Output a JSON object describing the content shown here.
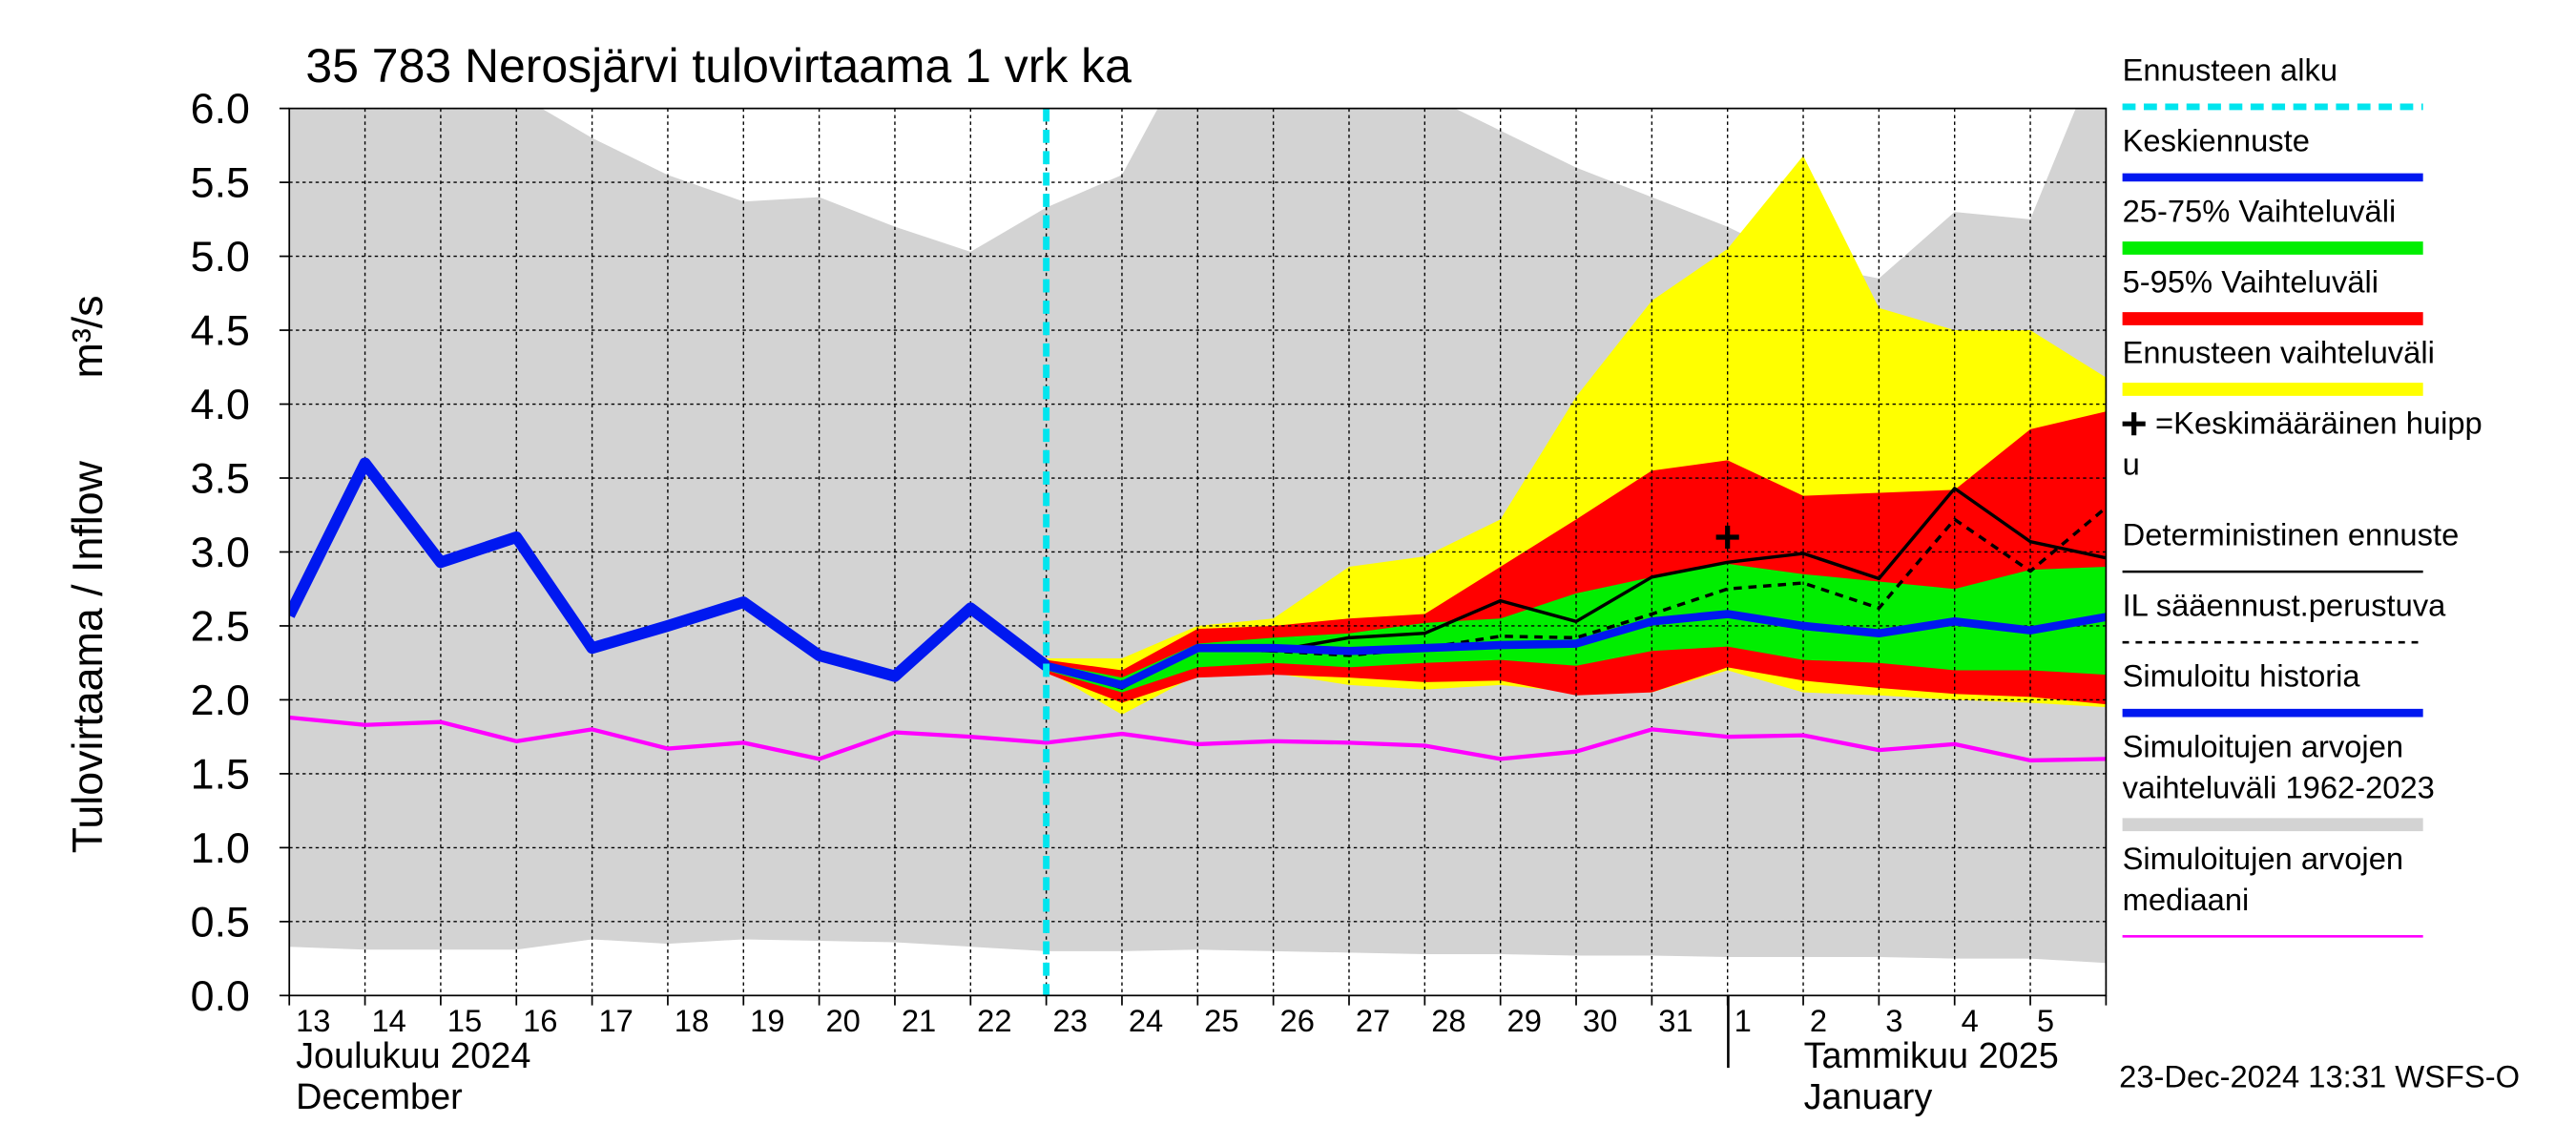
{
  "chart_data": {
    "type": "line",
    "title": "35 783 Nerosjärvi tulovirtaama 1 vrk ka",
    "y_label": "Tulovirtaama / Inflow",
    "y_unit": "m³/s",
    "categories": [
      "13",
      "14",
      "15",
      "16",
      "17",
      "18",
      "19",
      "20",
      "21",
      "22",
      "23",
      "24",
      "25",
      "26",
      "27",
      "28",
      "29",
      "30",
      "31",
      "1",
      "2",
      "3",
      "4",
      "5",
      null
    ],
    "month_labels": [
      [
        "Joulukuu  2024",
        "December"
      ],
      [
        "Tammikuu  2025",
        "January"
      ]
    ],
    "footer": "23-Dec-2024 13:31 WSFS-O",
    "ylim": [
      0,
      6
    ],
    "yticks": [
      {
        "value": 0,
        "label": "0.0"
      },
      0.5,
      {
        "value": 1,
        "label": "1.0"
      },
      1.5,
      {
        "value": 2,
        "label": "2.0"
      },
      2.5,
      {
        "value": 3,
        "label": "3.0"
      },
      3.5,
      {
        "value": 4,
        "label": "4.0"
      },
      4.5,
      {
        "value": 5,
        "label": "5.0"
      },
      5.5,
      {
        "value": 6,
        "label": "6.0"
      }
    ],
    "grid": true,
    "forecast_start": {
      "name": "Ennusteen alku",
      "x": 10,
      "color": "#00e5ee"
    },
    "peak": {
      "name": [
        "=Keskimääräinen huipp",
        "u"
      ],
      "x": 19,
      "y": 3.1,
      "color": "#000000"
    },
    "series": [
      {
        "name": [
          "Keskiennuste"
        ],
        "kind": "line",
        "color": "#0018f0",
        "width": 5,
        "values": [
          null,
          null,
          null,
          null,
          null,
          null,
          null,
          null,
          null,
          null,
          2.23,
          2.1,
          2.35,
          2.35,
          2.33,
          2.35,
          2.37,
          2.38,
          2.53,
          2.58,
          2.5,
          2.45,
          2.53,
          2.47,
          2.56
        ]
      },
      {
        "name": [
          "25-75% Vaihteluväli"
        ],
        "kind": "band",
        "color": "#00ee00",
        "upper": [
          null,
          null,
          null,
          null,
          null,
          null,
          null,
          null,
          null,
          null,
          2.25,
          2.15,
          2.38,
          2.42,
          2.45,
          2.52,
          2.55,
          2.72,
          2.83,
          2.92,
          2.85,
          2.8,
          2.75,
          2.88,
          2.9
        ],
        "lower": [
          null,
          null,
          null,
          null,
          null,
          null,
          null,
          null,
          null,
          null,
          2.2,
          2.05,
          2.22,
          2.25,
          2.22,
          2.25,
          2.27,
          2.23,
          2.33,
          2.36,
          2.27,
          2.25,
          2.2,
          2.2,
          2.17
        ]
      },
      {
        "name": [
          "5-95% Vaihteluväli"
        ],
        "kind": "band",
        "color": "#ff0000",
        "upper": [
          null,
          null,
          null,
          null,
          null,
          null,
          null,
          null,
          null,
          null,
          2.27,
          2.2,
          2.48,
          2.5,
          2.55,
          2.58,
          2.9,
          3.22,
          3.55,
          3.62,
          3.38,
          3.4,
          3.42,
          3.83,
          3.95
        ],
        "lower": [
          null,
          null,
          null,
          null,
          null,
          null,
          null,
          null,
          null,
          null,
          2.18,
          1.98,
          2.15,
          2.17,
          2.15,
          2.12,
          2.13,
          2.03,
          2.05,
          2.22,
          2.13,
          2.08,
          2.04,
          2.02,
          1.97
        ]
      },
      {
        "name": [
          "Ennusteen vaihteluväli"
        ],
        "kind": "band",
        "color": "#ffff00",
        "upper": [
          null,
          null,
          null,
          null,
          null,
          null,
          null,
          null,
          null,
          null,
          2.28,
          2.28,
          2.5,
          2.55,
          2.9,
          2.97,
          3.22,
          4.05,
          4.7,
          5.05,
          5.68,
          4.65,
          4.5,
          4.5,
          4.18
        ],
        "lower": [
          null,
          null,
          null,
          null,
          null,
          null,
          null,
          null,
          null,
          null,
          2.2,
          1.9,
          2.17,
          2.18,
          2.1,
          2.07,
          2.1,
          2.05,
          2.05,
          2.2,
          2.05,
          2.03,
          2.0,
          1.98,
          1.95
        ]
      },
      {
        "name": [
          "Deterministinen ennuste"
        ],
        "kind": "line",
        "color": "#000000",
        "width": 2,
        "values": [
          null,
          null,
          null,
          null,
          null,
          null,
          null,
          null,
          null,
          null,
          2.23,
          2.08,
          2.35,
          2.33,
          2.42,
          2.45,
          2.67,
          2.53,
          2.83,
          2.93,
          2.99,
          2.82,
          3.43,
          3.07,
          2.96
        ]
      },
      {
        "name": [
          "IL sääennust.perustuva"
        ],
        "kind": "line",
        "color": "#000000",
        "width": 2,
        "dashed": true,
        "values": [
          null,
          null,
          null,
          null,
          null,
          null,
          null,
          null,
          null,
          null,
          2.23,
          2.08,
          2.35,
          2.33,
          2.3,
          2.35,
          2.43,
          2.42,
          2.58,
          2.75,
          2.79,
          2.62,
          3.22,
          2.87,
          3.3
        ]
      },
      {
        "name": [
          "Simuloitu historia"
        ],
        "kind": "line",
        "color": "#0018f0",
        "width": 7,
        "values": [
          2.57,
          3.6,
          2.93,
          3.1,
          2.35,
          2.5,
          2.66,
          2.3,
          2.16,
          2.62,
          2.23,
          null,
          null,
          null,
          null,
          null,
          null,
          null,
          null,
          null,
          null,
          null,
          null,
          null,
          null
        ]
      },
      {
        "name": [
          "Simuloitujen arvojen",
          "vaihteluväli 1962-2023"
        ],
        "kind": "band",
        "color": "#d3d3d3",
        "upper": [
          6.5,
          6.5,
          6.5,
          6.1,
          5.8,
          5.55,
          5.37,
          5.4,
          5.2,
          5.03,
          5.33,
          5.55,
          6.5,
          6.5,
          6.5,
          6.1,
          5.85,
          5.6,
          5.4,
          5.2,
          4.95,
          4.85,
          5.3,
          5.25,
          6.5
        ],
        "lower": [
          0.33,
          0.31,
          0.31,
          0.31,
          0.38,
          0.35,
          0.38,
          0.37,
          0.36,
          0.33,
          0.3,
          0.3,
          0.31,
          0.3,
          0.29,
          0.28,
          0.28,
          0.27,
          0.27,
          0.26,
          0.26,
          0.26,
          0.25,
          0.25,
          0.22
        ]
      },
      {
        "name": [
          "Simuloitujen arvojen",
          "mediaani"
        ],
        "kind": "line",
        "color": "#ff00ff",
        "width": 2.5,
        "values": [
          1.88,
          1.83,
          1.85,
          1.72,
          1.8,
          1.67,
          1.71,
          1.6,
          1.78,
          1.75,
          1.71,
          1.77,
          1.7,
          1.72,
          1.71,
          1.69,
          1.6,
          1.65,
          1.8,
          1.75,
          1.76,
          1.66,
          1.7,
          1.59,
          1.6
        ]
      }
    ]
  }
}
